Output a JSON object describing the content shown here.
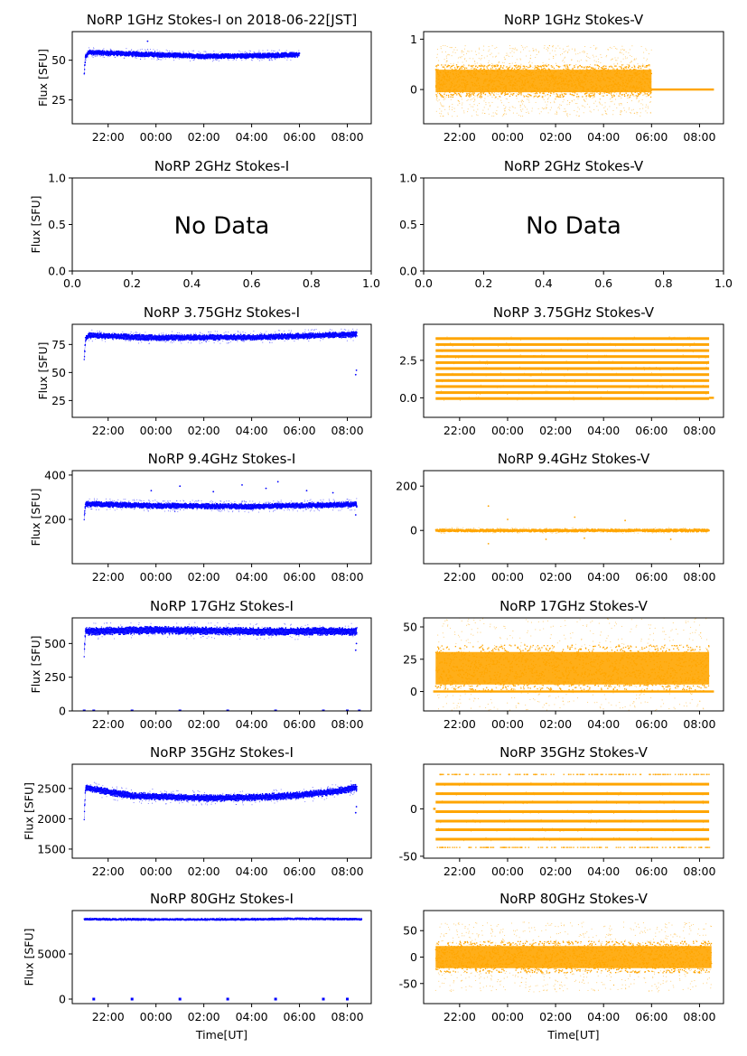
{
  "figure_title": "NoRP 1GHz Stokes-I on 2018-06-22[JST]",
  "colors": {
    "stokes_i": "#0000ff",
    "stokes_v": "#ffa500",
    "axes": "#000000"
  },
  "xlabel": "Time[UT]",
  "time_ticks": [
    "22:00",
    "00:00",
    "02:00",
    "04:00",
    "06:00",
    "08:00"
  ],
  "chart_data": [
    {
      "type": "scatter",
      "title": "NoRP 1GHz Stokes-I on 2018-06-22[JST]",
      "ylabel": "Flux [SFU]",
      "xlabel": "",
      "ylim": [
        10,
        68
      ],
      "yticks": [
        "25",
        "50"
      ],
      "ytick_values": [
        25,
        50
      ],
      "color": "#0000ff",
      "x_range_hours": [
        -3.5,
        9.0
      ],
      "data_start_hour": -3.0,
      "data_end_hour": 6.0,
      "baseline": [
        [
          -3.0,
          41
        ],
        [
          -2.95,
          52
        ],
        [
          -2.8,
          55
        ],
        [
          -2.0,
          54.5
        ],
        [
          0,
          53.5
        ],
        [
          2,
          52.5
        ],
        [
          4,
          52.8
        ],
        [
          6,
          53.5
        ]
      ],
      "spread": 1.5,
      "noise": 0.2,
      "outliers": [
        [
          -0.35,
          62
        ]
      ]
    },
    {
      "type": "scatter",
      "title": "NoRP 1GHz Stokes-V",
      "ylabel": "",
      "xlabel": "",
      "ylim": [
        -0.68,
        1.15
      ],
      "yticks": [
        "0",
        "1"
      ],
      "ytick_values": [
        0,
        1
      ],
      "color": "#ffa500",
      "x_range_hours": [
        -3.5,
        9.0
      ],
      "data_start_hour": -3.0,
      "data_end_hour": 6.0,
      "baseline": [
        [
          -3.0,
          0.17
        ],
        [
          6.0,
          0.17
        ]
      ],
      "spread": 0.32,
      "noise": 0.7,
      "flat_segment": {
        "from": 6.0,
        "to": 8.6,
        "value": 0.0
      }
    },
    {
      "type": "empty",
      "title": "NoRP 2GHz Stokes-I",
      "ylabel": "Flux [SFU]",
      "message": "No Data",
      "xlim": [
        0,
        1
      ],
      "ylim": [
        0,
        1
      ],
      "xticks": [
        "0.0",
        "0.2",
        "0.4",
        "0.6",
        "0.8",
        "1.0"
      ],
      "xtick_values": [
        0,
        0.2,
        0.4,
        0.6,
        0.8,
        1.0
      ],
      "yticks": [
        "0.0",
        "0.5",
        "1.0"
      ],
      "ytick_values": [
        0,
        0.5,
        1.0
      ]
    },
    {
      "type": "empty",
      "title": "NoRP 2GHz Stokes-V",
      "ylabel": "",
      "message": "No Data",
      "xlim": [
        0,
        1
      ],
      "ylim": [
        0,
        1
      ],
      "xticks": [
        "0.0",
        "0.2",
        "0.4",
        "0.6",
        "0.8",
        "1.0"
      ],
      "xtick_values": [
        0,
        0.2,
        0.4,
        0.6,
        0.8,
        1.0
      ],
      "yticks": [
        "0.0",
        "0.5",
        "1.0"
      ],
      "ytick_values": [
        0,
        0.5,
        1.0
      ]
    },
    {
      "type": "scatter",
      "title": "NoRP 3.75GHz Stokes-I",
      "ylabel": "Flux [SFU]",
      "xlabel": "",
      "ylim": [
        10,
        93
      ],
      "yticks": [
        "25",
        "50",
        "75"
      ],
      "ytick_values": [
        25,
        50,
        75
      ],
      "color": "#0000ff",
      "x_range_hours": [
        -3.5,
        9.0
      ],
      "data_start_hour": -3.0,
      "data_end_hour": 8.4,
      "baseline": [
        [
          -3.0,
          62
        ],
        [
          -2.95,
          80
        ],
        [
          -2.8,
          83
        ],
        [
          0,
          81
        ],
        [
          4,
          81.5
        ],
        [
          8.3,
          84
        ]
      ],
      "spread": 2.5,
      "noise": 0.2,
      "outliers": [
        [
          8.35,
          48
        ],
        [
          8.38,
          52
        ]
      ]
    },
    {
      "type": "bands",
      "title": "NoRP 3.75GHz Stokes-V",
      "ylabel": "",
      "xlabel": "",
      "ylim": [
        -1.3,
        4.9
      ],
      "yticks": [
        "0.0",
        "2.5"
      ],
      "ytick_values": [
        0,
        2.5
      ],
      "color": "#ffa500",
      "x_range_hours": [
        -3.5,
        9.0
      ],
      "data_start_hour": -3.0,
      "data_end_hour": 8.4,
      "levels": [
        -0.05,
        0.35,
        0.75,
        1.15,
        1.55,
        1.95,
        2.35,
        2.75,
        3.15,
        3.55,
        3.95
      ],
      "flat_segment": {
        "from": 8.4,
        "to": 8.6,
        "value": 0.0
      }
    },
    {
      "type": "scatter",
      "title": "NoRP 9.4GHz Stokes-I",
      "ylabel": "Flux [SFU]",
      "xlabel": "",
      "ylim": [
        0,
        420
      ],
      "yticks": [
        "200",
        "400"
      ],
      "ytick_values": [
        200,
        400
      ],
      "color": "#0000ff",
      "x_range_hours": [
        -3.5,
        9.0
      ],
      "data_start_hour": -3.0,
      "data_end_hour": 8.4,
      "baseline": [
        [
          -3.0,
          205
        ],
        [
          -2.95,
          270
        ],
        [
          0,
          262
        ],
        [
          4,
          258
        ],
        [
          8.3,
          268
        ]
      ],
      "spread": 12,
      "noise": 0.25,
      "outliers": [
        [
          -0.2,
          330
        ],
        [
          1.0,
          350
        ],
        [
          2.4,
          325
        ],
        [
          3.6,
          355
        ],
        [
          4.6,
          340
        ],
        [
          5.1,
          370
        ],
        [
          6.3,
          330
        ],
        [
          7.4,
          320
        ],
        [
          8.35,
          220
        ]
      ]
    },
    {
      "type": "scatter",
      "title": "NoRP 9.4GHz Stokes-V",
      "ylabel": "",
      "xlabel": "",
      "ylim": [
        -150,
        270
      ],
      "yticks": [
        "0",
        "200"
      ],
      "ytick_values": [
        0,
        200
      ],
      "color": "#ffa500",
      "x_range_hours": [
        -3.5,
        9.0
      ],
      "data_start_hour": -3.0,
      "data_end_hour": 8.4,
      "baseline": [
        [
          -3.0,
          0
        ],
        [
          8.4,
          0
        ]
      ],
      "spread": 6,
      "noise": 0.12,
      "outliers": [
        [
          -0.8,
          110
        ],
        [
          -0.8,
          -60
        ],
        [
          0.0,
          50
        ],
        [
          1.6,
          -40
        ],
        [
          2.8,
          60
        ],
        [
          3.2,
          -35
        ],
        [
          4.9,
          45
        ],
        [
          6.8,
          -40
        ]
      ]
    },
    {
      "type": "scatter",
      "title": "NoRP 17GHz Stokes-I",
      "ylabel": "Flux [SFU]",
      "xlabel": "",
      "ylim": [
        0,
        690
      ],
      "yticks": [
        "0",
        "250",
        "500"
      ],
      "ytick_values": [
        0,
        250,
        500
      ],
      "color": "#0000ff",
      "x_range_hours": [
        -3.5,
        9.0
      ],
      "data_start_hour": -3.0,
      "data_end_hour": 8.4,
      "baseline": [
        [
          -3.0,
          430
        ],
        [
          -2.95,
          590
        ],
        [
          0,
          600
        ],
        [
          4,
          590
        ],
        [
          8.3,
          590
        ]
      ],
      "spread": 28,
      "noise": 0.1,
      "outliers": [
        [
          8.35,
          450
        ],
        [
          8.38,
          500
        ]
      ],
      "zero_marks": [
        -3.0,
        -2.6,
        -1.0,
        1.0,
        3.0,
        5.0,
        7.0,
        8.0,
        8.5
      ]
    },
    {
      "type": "scatter",
      "title": "NoRP 17GHz Stokes-V",
      "ylabel": "",
      "xlabel": "",
      "ylim": [
        -15,
        57
      ],
      "yticks": [
        "0",
        "25",
        "50"
      ],
      "ytick_values": [
        0,
        25,
        50
      ],
      "color": "#ffa500",
      "x_range_hours": [
        -3.5,
        9.0
      ],
      "data_start_hour": -3.0,
      "data_end_hour": 8.4,
      "baseline": [
        [
          -3.0,
          18
        ],
        [
          8.4,
          18
        ]
      ],
      "spread": 18,
      "noise": 0.45,
      "flat_segment": {
        "from": -3.1,
        "to": 8.6,
        "value": 0.0
      }
    },
    {
      "type": "scatter",
      "title": "NoRP 35GHz Stokes-I",
      "ylabel": "Flux [SFU]",
      "xlabel": "",
      "ylim": [
        1350,
        2900
      ],
      "yticks": [
        "1500",
        "2000",
        "2500"
      ],
      "ytick_values": [
        1500,
        2000,
        2500
      ],
      "color": "#0000ff",
      "x_range_hours": [
        -3.5,
        9.0
      ],
      "data_start_hour": -3.0,
      "data_end_hour": 8.4,
      "baseline": [
        [
          -3.0,
          2000
        ],
        [
          -2.95,
          2520
        ],
        [
          -2.5,
          2480
        ],
        [
          -1,
          2380
        ],
        [
          2,
          2340
        ],
        [
          4,
          2350
        ],
        [
          6,
          2390
        ],
        [
          7.5,
          2450
        ],
        [
          8.3,
          2510
        ]
      ],
      "spread": 55,
      "noise": 0.15,
      "outliers": [
        [
          8.35,
          2100
        ],
        [
          8.38,
          2200
        ]
      ]
    },
    {
      "type": "bands",
      "title": "NoRP 35GHz Stokes-V",
      "ylabel": "",
      "xlabel": "",
      "ylim": [
        -52,
        47
      ],
      "yticks": [
        "0",
        "-50"
      ],
      "ytick_values": [
        0,
        -50
      ],
      "color": "#ffa500",
      "x_range_hours": [
        -3.5,
        9.0
      ],
      "data_start_hour": -3.0,
      "data_end_hour": 8.4,
      "levels": [
        -32,
        -22,
        -13,
        -3,
        7,
        16,
        26
      ],
      "sparse_levels": [
        -41,
        36
      ],
      "flat_segment": {
        "from": -3.1,
        "to": -3.0,
        "value": 0.0
      }
    },
    {
      "type": "scatter",
      "title": "NoRP 80GHz Stokes-I",
      "ylabel": "Flux [SFU]",
      "xlabel": "Time[UT]",
      "ylim": [
        -500,
        9800
      ],
      "yticks": [
        "0",
        "5000"
      ],
      "ytick_values": [
        0,
        5000
      ],
      "color": "#0000ff",
      "x_range_hours": [
        -3.5,
        9.0
      ],
      "data_start_hour": -3.0,
      "data_end_hour": 8.6,
      "baseline": [
        [
          -3.0,
          8850
        ],
        [
          0,
          8820
        ],
        [
          4,
          8830
        ],
        [
          6,
          8900
        ],
        [
          8.6,
          8850
        ]
      ],
      "spread": 90,
      "noise": 0.05,
      "zero_marks": [
        -2.6,
        -1.0,
        1.0,
        3.0,
        5.0,
        7.0,
        8.0
      ]
    },
    {
      "type": "scatter",
      "title": "NoRP 80GHz Stokes-V",
      "ylabel": "",
      "xlabel": "Time[UT]",
      "ylim": [
        -88,
        88
      ],
      "yticks": [
        "-50",
        "0",
        "50"
      ],
      "ytick_values": [
        -50,
        0,
        50
      ],
      "color": "#ffa500",
      "x_range_hours": [
        -3.5,
        9.0
      ],
      "data_start_hour": -3.0,
      "data_end_hour": 8.5,
      "baseline": [
        [
          -3.0,
          0
        ],
        [
          8.5,
          0
        ]
      ],
      "spread": 30,
      "noise": 0.5
    }
  ]
}
